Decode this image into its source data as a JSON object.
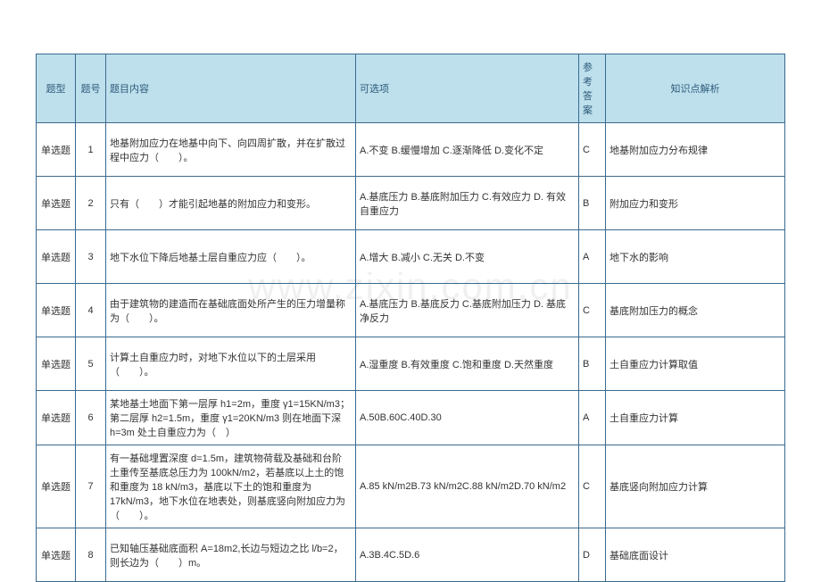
{
  "watermark": "www.zixin.com.cn",
  "columns": [
    "题型",
    "题号",
    "题目内容",
    "可选项",
    "参考答案",
    "知识点解析"
  ],
  "rows": [
    {
      "type": "单选题",
      "num": "1",
      "body": "地基附加应力在地基中向下、向四周扩散，并在扩散过程中应力（　　）。",
      "opts": "A.不变 B.缓慢增加 C.逐渐降低 D.变化不定",
      "ans": "C",
      "note": "地基附加应力分布规律"
    },
    {
      "type": "单选题",
      "num": "2",
      "body": "只有（　　）才能引起地基的附加应力和变形。",
      "opts": "A.基底压力 B.基底附加压力 C.有效应力 D. 有效自重应力",
      "ans": "B",
      "note": "附加应力和变形"
    },
    {
      "type": "单选题",
      "num": "3",
      "body": "地下水位下降后地基土层自重应力应（　　）。",
      "opts": "A.增大 B.减小 C.无关 D.不变",
      "ans": "A",
      "note": "地下水的影响"
    },
    {
      "type": "单选题",
      "num": "4",
      "body": "由于建筑物的建造而在基础底面处所产生的压力增量称为（　　）。",
      "opts": "A.基底压力 B.基底反力 C.基底附加压力 D. 基底净反力",
      "ans": "C",
      "note": "基底附加压力的概念"
    },
    {
      "type": "单选题",
      "num": "5",
      "body": "计算土自重应力时，对地下水位以下的土层采用（　　）。",
      "opts": "A.湿重度 B.有效重度 C.饱和重度 D.天然重度",
      "ans": "B",
      "note": "土自重应力计算取值"
    },
    {
      "type": "单选题",
      "num": "6",
      "body": "某地基土地面下第一层厚 h1=2m，重度 γ1=15KN/m3；第二层厚 h2=1.5m，重度 γ1=20KN/m3\n则在地面下深 h=3m 处土自重应力为（　）",
      "opts": "A.50B.60C.40D.30",
      "ans": "A",
      "note": "土自重应力计算"
    },
    {
      "type": "单选题",
      "num": "7",
      "body": "有一基础埋置深度 d=1.5m，建筑物荷载及基础和台阶土重传至基底总压力为 100kN/m2，若基底以上土的饱和重度为 18 kN/m3，基底以下土的饱和重度为 17kN/m3，地下水位在地表处，则基底竖向附加应力为 （　　）。",
      "opts": "A.85 kN/m2B.73 kN/m2C.88 kN/m2D.70 kN/m2",
      "ans": "C",
      "note": "基底竖向附加应力计算"
    },
    {
      "type": "单选题",
      "num": "8",
      "body": "已知轴压基础底面积 A=18m2,长边与短边之比 l/b=2，则长边为（　　）m。",
      "opts": "A.3B.4C.5D.6",
      "ans": "D",
      "note": "基础底面设计"
    }
  ]
}
